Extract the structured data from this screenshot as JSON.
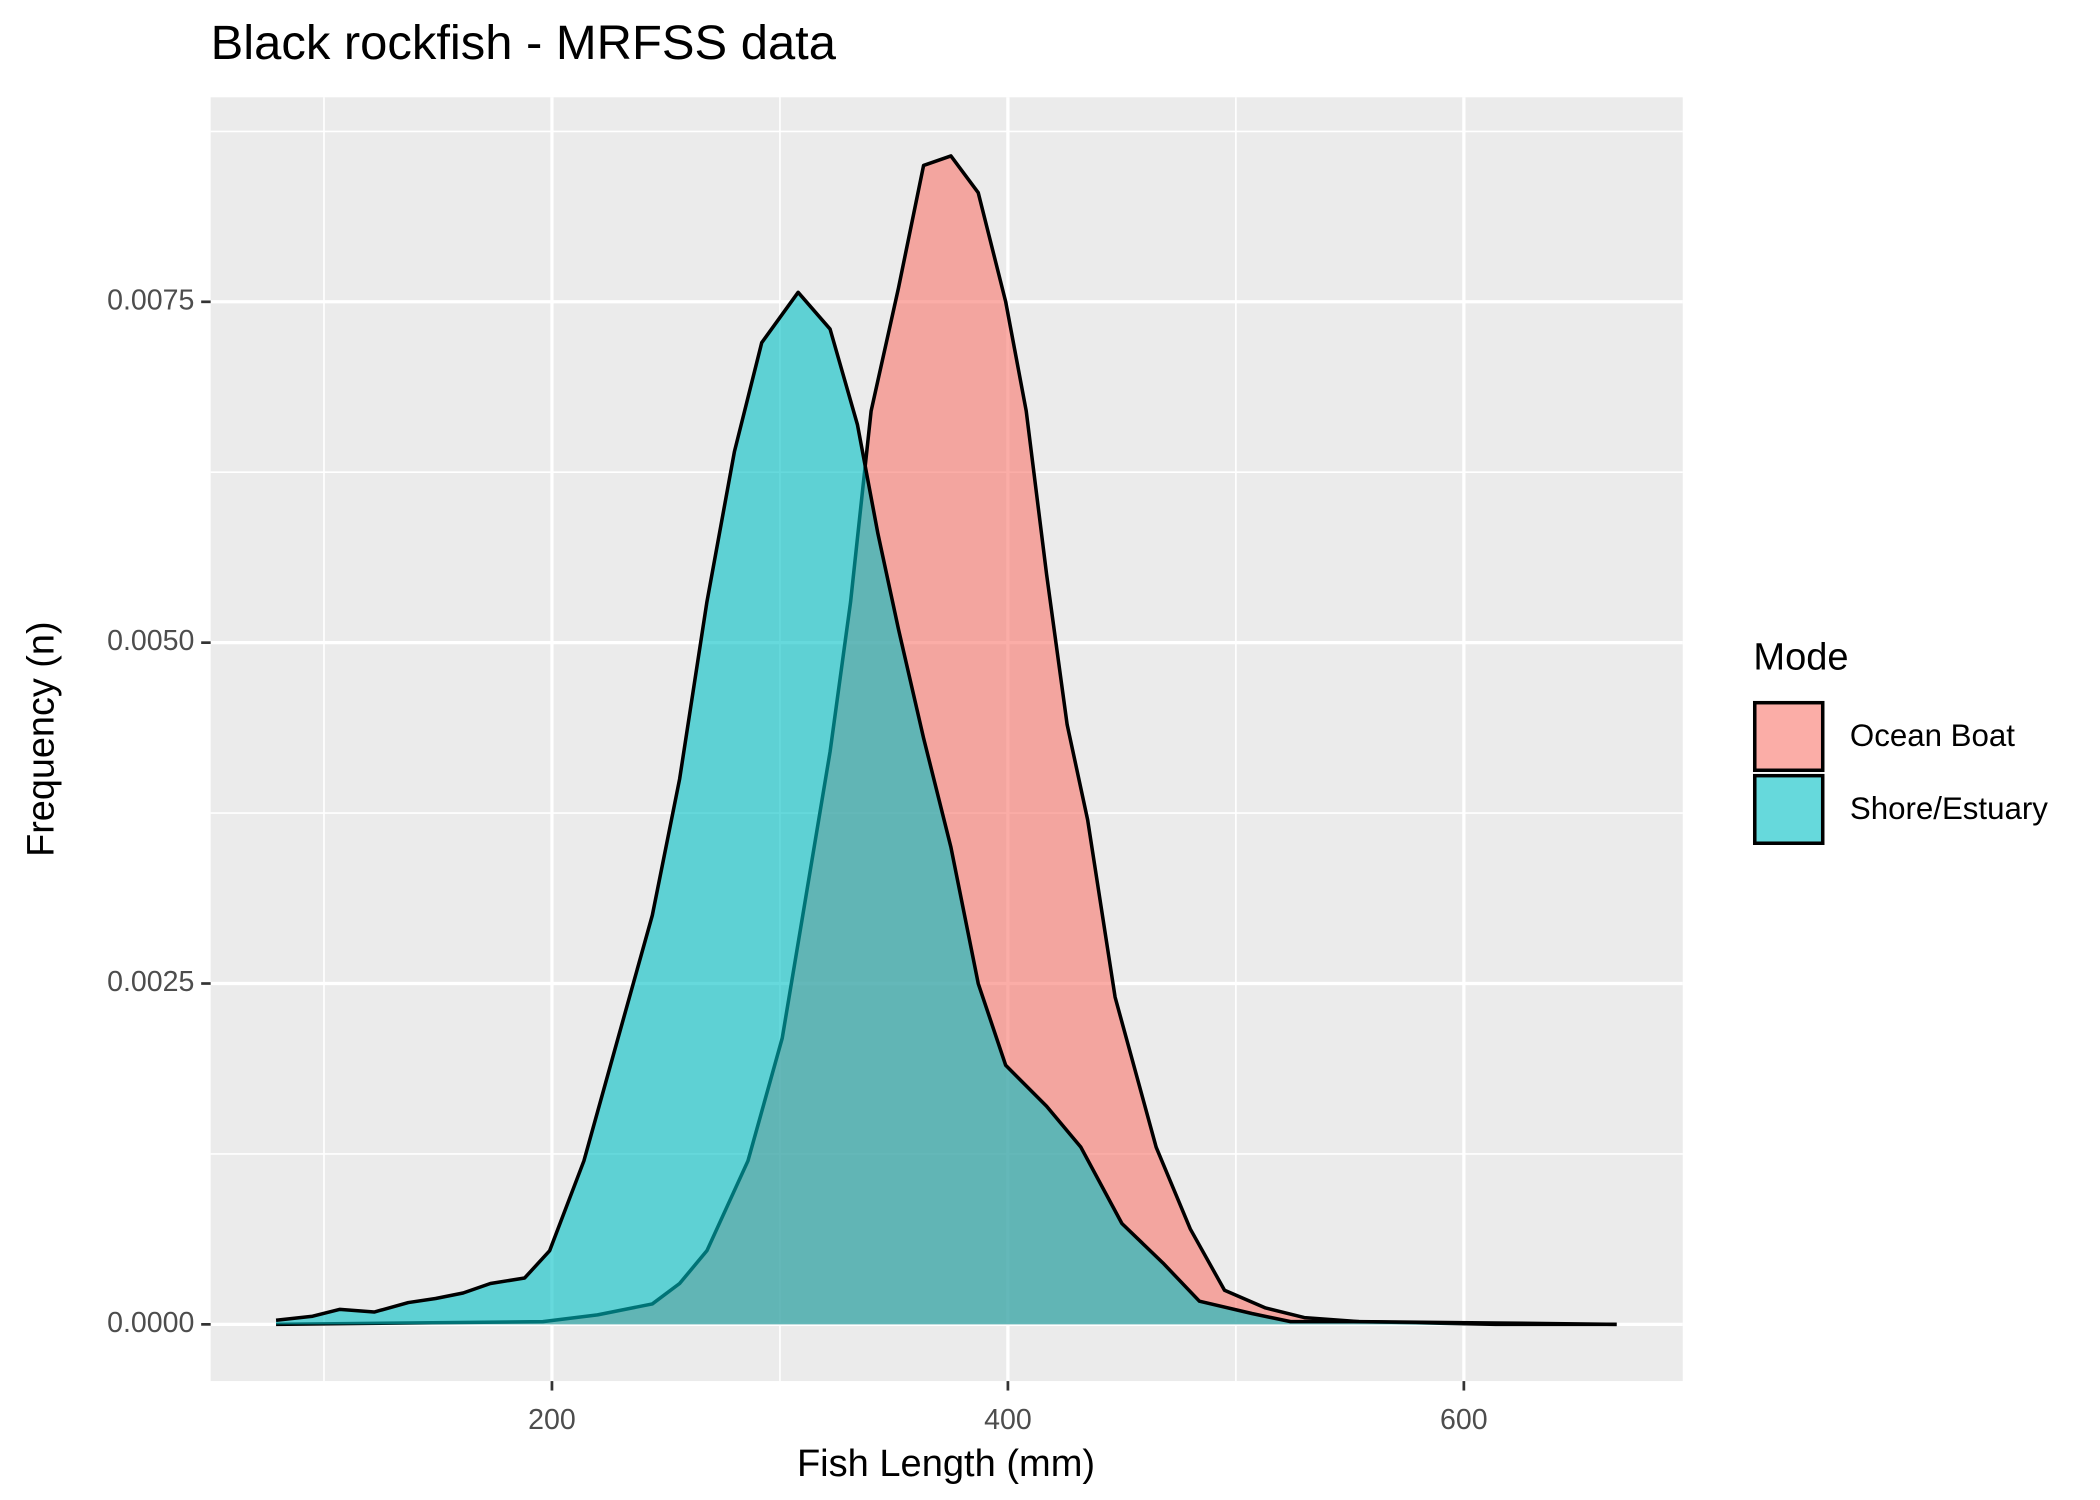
{
  "chart_data": {
    "type": "density",
    "title": "Black rockfish - MRFSS data",
    "x_label": "Fish Length (mm)",
    "y_label": "Frequency (n)",
    "legend_title": "Mode",
    "legend_position": "right",
    "grid": true,
    "xlim": [
      50.3,
      696
    ],
    "ylim": [
      -0.000416,
      0.009
    ],
    "xticks": [
      200,
      400,
      600
    ],
    "x_minor_ticks": [
      100,
      300,
      500
    ],
    "yticks": [
      {
        "value": 0,
        "label": "0.0000"
      },
      {
        "value": 0.0025,
        "label": "0.0025"
      },
      {
        "value": 0.005,
        "label": "0.0050"
      },
      {
        "value": 0.0075,
        "label": "0.0075"
      }
    ],
    "y_minor_ticks": [
      0.00125,
      0.00375,
      0.00625,
      0.00875
    ],
    "series": [
      {
        "name": "Ocean Boat",
        "color": "#F8766D",
        "x": [
          79,
          196,
          220,
          244,
          256,
          268,
          286,
          301,
          310,
          322,
          331,
          340,
          352,
          363,
          375,
          387,
          399,
          408,
          417,
          426,
          435,
          447,
          465,
          480,
          495,
          513,
          530,
          554,
          614,
          667
        ],
        "values": [
          0,
          2e-05,
          7e-05,
          0.00015,
          0.0003,
          0.00054,
          0.0012,
          0.0021,
          0.003,
          0.0042,
          0.0053,
          0.0067,
          0.0076,
          0.0085,
          0.00857,
          0.0083,
          0.0075,
          0.0067,
          0.0055,
          0.0044,
          0.0037,
          0.0024,
          0.0013,
          0.0007,
          0.00025,
          0.00012,
          5e-05,
          2e-05,
          0,
          0
        ]
      },
      {
        "name": "Shore/Estuary",
        "color": "#00BFC4",
        "x": [
          79,
          95,
          107,
          122,
          137,
          149,
          161,
          173,
          188,
          199,
          214,
          229,
          244,
          256,
          268,
          280,
          292,
          308,
          322,
          334,
          343,
          352,
          363,
          375,
          387,
          399,
          417,
          432,
          450,
          468,
          484,
          507,
          524,
          554,
          614,
          667
        ],
        "values": [
          3e-05,
          6e-05,
          0.00011,
          9e-05,
          0.00016,
          0.00019,
          0.00023,
          0.0003,
          0.00034,
          0.00054,
          0.0012,
          0.0021,
          0.003,
          0.004,
          0.0053,
          0.0064,
          0.0072,
          0.00757,
          0.0073,
          0.0066,
          0.0058,
          0.0051,
          0.0043,
          0.0035,
          0.0025,
          0.0019,
          0.0016,
          0.0013,
          0.00074,
          0.00045,
          0.00017,
          8e-05,
          2e-05,
          2e-05,
          1e-05,
          0
        ]
      }
    ]
  }
}
